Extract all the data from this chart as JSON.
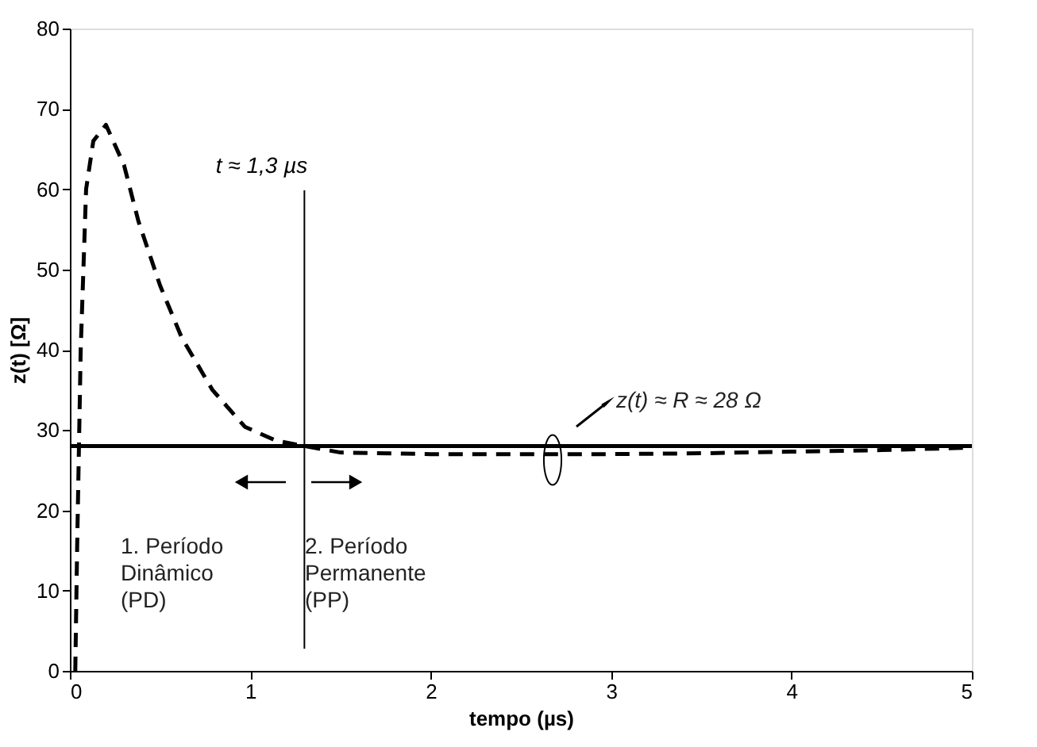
{
  "chart_data": {
    "type": "line",
    "xlabel": "tempo (µs)",
    "ylabel": "z(t) [Ω]",
    "x": [
      0.03,
      0.04,
      0.06,
      0.09,
      0.13,
      0.2,
      0.3,
      0.38,
      0.5,
      0.62,
      0.79,
      0.97,
      1.14,
      1.3,
      1.5,
      2,
      2.5,
      3,
      3.5,
      4,
      4.5,
      5
    ],
    "series": [
      {
        "color": "#000000",
        "line_style": "dashed",
        "values": [
          0,
          15,
          40,
          60,
          66,
          68,
          63,
          56,
          48,
          41.5,
          35,
          30.4,
          28.7,
          28,
          27.2,
          27,
          27,
          27,
          27.1,
          27.3,
          27.5,
          27.8
        ]
      }
    ],
    "xlim": [
      0,
      5
    ],
    "xticks": [
      0,
      1,
      2,
      3,
      4,
      5
    ],
    "ylim": [
      0,
      80
    ],
    "yticks": [
      0,
      10,
      20,
      30,
      40,
      50,
      60,
      70,
      80
    ],
    "grid": false,
    "marker": "none",
    "ref_lines": [
      {
        "axis": "y",
        "value": 28,
        "color": "#000000",
        "line_style": "solid"
      },
      {
        "axis": "x",
        "value": 1.3,
        "label": "t ≈ 1,3 µs",
        "color": "#000000",
        "line_style": "solid"
      }
    ],
    "annotations": [
      "1. Período\nDinâmico\n(PD)",
      "2. Período\nPermanente\n(PP)",
      "z(t) ≈ R ≈ 28 Ω"
    ]
  }
}
